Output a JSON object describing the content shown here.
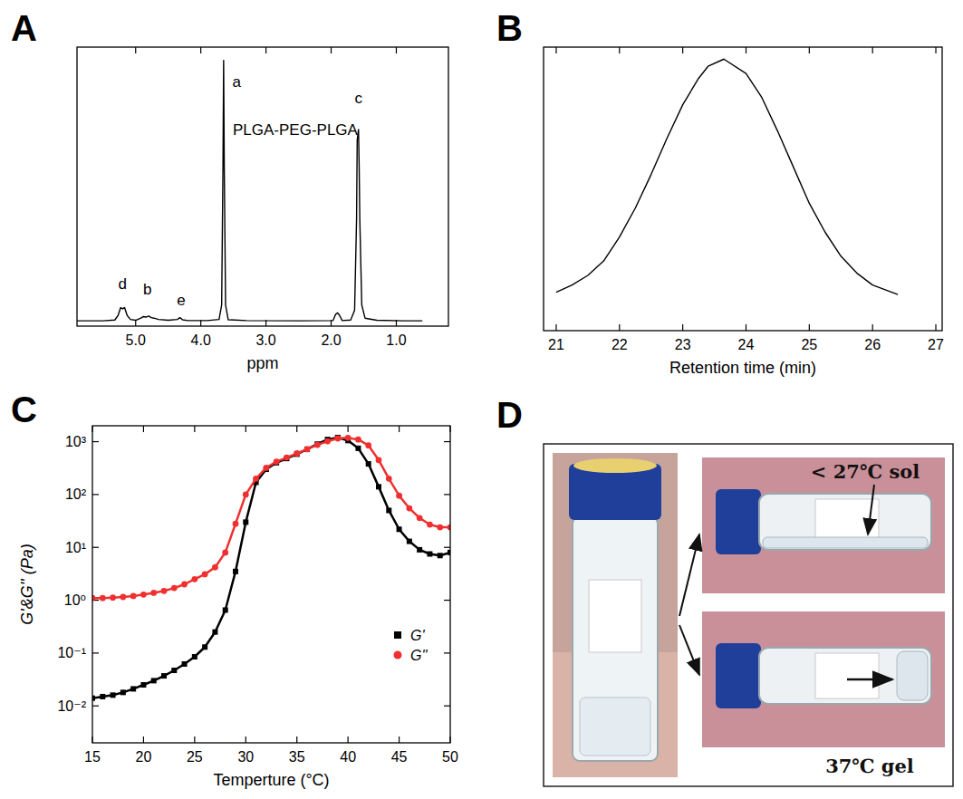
{
  "panels": [
    "A",
    "B",
    "C",
    "D"
  ],
  "chart_data": [
    {
      "type": "line",
      "color": "#000000",
      "xlabel": "ppm",
      "xlim": [
        5.9,
        0.2
      ],
      "ylim": [
        0,
        105
      ],
      "xticks": [
        {
          "value": 5,
          "label": "5.0"
        },
        {
          "value": 4,
          "label": "4.0"
        },
        {
          "value": 3,
          "label": "3.0"
        },
        {
          "value": 2,
          "label": "2.0"
        },
        {
          "value": 1,
          "label": "1.0"
        }
      ],
      "tick_labels": "x",
      "x": [
        5.9,
        5.5,
        5.32,
        5.27,
        5.23,
        5.2,
        5.17,
        5.13,
        5.08,
        5.0,
        4.92,
        4.88,
        4.84,
        4.8,
        4.76,
        4.72,
        4.65,
        4.5,
        4.36,
        4.32,
        4.28,
        4.2,
        3.9,
        3.72,
        3.68,
        3.66,
        3.65,
        3.64,
        3.62,
        3.58,
        3.3,
        2.5,
        1.97,
        1.93,
        1.9,
        1.87,
        1.83,
        1.7,
        1.64,
        1.61,
        1.6,
        1.59,
        1.58,
        1.57,
        1.56,
        1.53,
        1.48,
        1.3,
        0.9,
        0.6
      ],
      "values": [
        2,
        2,
        2.3,
        4,
        7,
        6.5,
        7,
        4,
        2.5,
        2.2,
        3,
        3.6,
        3.4,
        3.8,
        3.2,
        3,
        2.5,
        2.2,
        2.5,
        3.2,
        2.4,
        2.1,
        2.1,
        2.5,
        8,
        60,
        100,
        60,
        8,
        2.4,
        2.1,
        2,
        2.1,
        4.5,
        5,
        4,
        2.1,
        2.3,
        6,
        40,
        70,
        72,
        74,
        60,
        40,
        8,
        3,
        2.2,
        2,
        2
      ],
      "annotations": [
        {
          "text": "a",
          "x": 3.45,
          "y": 90
        },
        {
          "text": "PLGA-PEG-PLGA",
          "x": 2.55,
          "y": 72
        },
        {
          "text": "c",
          "x": 1.58,
          "y": 84
        },
        {
          "text": "d",
          "x": 5.2,
          "y": 14
        },
        {
          "text": "b",
          "x": 4.82,
          "y": 12
        },
        {
          "text": "e",
          "x": 4.3,
          "y": 8
        }
      ]
    },
    {
      "type": "line",
      "color": "#000000",
      "xlabel": "Retention time (min)",
      "xlim": [
        20.8,
        27.1
      ],
      "ylim": [
        -13,
        105
      ],
      "xticks": [
        21,
        22,
        23,
        24,
        25,
        26,
        27
      ],
      "tick_labels": "x",
      "x": [
        21,
        21.25,
        21.5,
        21.75,
        22,
        22.25,
        22.5,
        22.75,
        23,
        23.25,
        23.4,
        23.65,
        24,
        24.25,
        24.5,
        24.75,
        25,
        25.25,
        25.5,
        25.75,
        26,
        26.2,
        26.4
      ],
      "values": [
        3,
        6,
        10,
        16,
        26,
        38,
        52,
        67,
        81,
        92,
        97,
        100,
        94,
        84,
        70,
        55,
        40,
        28,
        18,
        11,
        6,
        4,
        2
      ]
    },
    {
      "type": "line",
      "xlabel": "Temperture (°C)",
      "ylabel": "G'&G'' (Pa)",
      "log": "y",
      "legend": "right",
      "xlim": [
        15,
        50
      ],
      "ylim": [
        0.002,
        2000
      ],
      "xticks": [
        15,
        20,
        25,
        30,
        35,
        40,
        45,
        50
      ],
      "yticks": [
        {
          "value": 0.01,
          "label": "10⁻²"
        },
        {
          "value": 0.1,
          "label": "10⁻¹"
        },
        {
          "value": 1,
          "label": "10⁰"
        },
        {
          "value": 10,
          "label": "10¹"
        },
        {
          "value": 100,
          "label": "10²"
        },
        {
          "value": 1000,
          "label": "10³"
        }
      ],
      "x": [
        15,
        16,
        17,
        18,
        19,
        20,
        21,
        22,
        23,
        24,
        25,
        26,
        27,
        28,
        29,
        30,
        31,
        32,
        33,
        34,
        35,
        36,
        37,
        38,
        39,
        40,
        41,
        42,
        43,
        44,
        45,
        46,
        47,
        48,
        49,
        50
      ],
      "series": [
        {
          "name": "G'",
          "color": "#000000",
          "marker": "square",
          "values": [
            0.014,
            0.015,
            0.016,
            0.018,
            0.021,
            0.025,
            0.03,
            0.037,
            0.047,
            0.062,
            0.085,
            0.13,
            0.25,
            0.65,
            3.5,
            30,
            170,
            300,
            400,
            480,
            580,
            720,
            900,
            1100,
            1200,
            1050,
            750,
            380,
            140,
            50,
            22,
            13,
            9,
            7.5,
            7,
            8
          ]
        },
        {
          "name": "G''",
          "color": "#f03030",
          "marker": "circle",
          "values": [
            1.1,
            1.1,
            1.12,
            1.15,
            1.2,
            1.28,
            1.38,
            1.5,
            1.7,
            2,
            2.5,
            3.1,
            4.2,
            8,
            28,
            100,
            200,
            320,
            420,
            500,
            600,
            720,
            870,
            1020,
            1150,
            1180,
            1100,
            850,
            450,
            200,
            95,
            55,
            36,
            27,
            24,
            24
          ]
        }
      ]
    }
  ],
  "photo": {
    "sol_label": "< 27℃ sol",
    "gel_label": "37℃ gel"
  }
}
